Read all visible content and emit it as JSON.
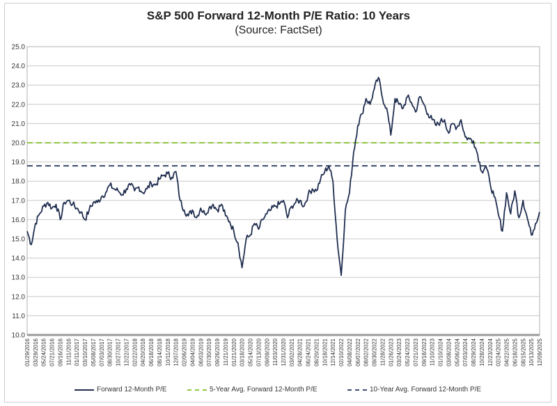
{
  "chart_data": {
    "type": "line",
    "title": "S&P 500 Forward 12-Month P/E Ratio: 10 Years",
    "subtitle": "(Source: FactSet)",
    "ylim": [
      10.0,
      25.0
    ],
    "yticks": [
      "10.0",
      "11.0",
      "12.0",
      "13.0",
      "14.0",
      "15.0",
      "16.0",
      "17.0",
      "18.0",
      "19.0",
      "20.0",
      "21.0",
      "22.0",
      "23.0",
      "24.0",
      "25.0"
    ],
    "xticks": [
      "01/29/2016",
      "03/29/2016",
      "05/24/2016",
      "07/21/2016",
      "09/16/2016",
      "11/11/2016",
      "01/11/2017",
      "03/10/2017",
      "05/08/2017",
      "07/03/2017",
      "08/30/2017",
      "10/27/2017",
      "12/22/2017",
      "02/22/2018",
      "04/20/2018",
      "06/18/2018",
      "08/14/2018",
      "10/11/2018",
      "12/07/2018",
      "02/06/2019",
      "04/04/2019",
      "06/03/2019",
      "07/30/2019",
      "09/26/2019",
      "11/21/2019",
      "01/21/2020",
      "03/18/2020",
      "05/14/2020",
      "07/13/2020",
      "09/09/2020",
      "11/03/2020",
      "12/31/2020",
      "03/02/2021",
      "04/28/2021",
      "06/24/2021",
      "08/20/2021",
      "10/18/2021",
      "12/14/2021",
      "02/10/2022",
      "04/08/2022",
      "06/07/2022",
      "08/02/2022",
      "09/30/2022",
      "11/28/2022",
      "01/26/2023",
      "03/24/2023",
      "05/24/2023",
      "07/21/2023",
      "09/18/2023",
      "11/10/2023",
      "01/10/2024",
      "03/08/2024",
      "05/06/2024",
      "07/03/2024",
      "08/29/2024",
      "10/28/2024",
      "12/23/2024",
      "02/24/2025",
      "04/22/2025",
      "06/18/2025",
      "08/15/2025",
      "10/13/2025",
      "12/09/2025"
    ],
    "grid": true,
    "legend_position": "bottom",
    "series": [
      {
        "name": "Forward 12-Month P/E",
        "color": "#1f2d4f",
        "x": [
          0.0,
          0.5,
          1.0,
          1.5,
          2.0,
          2.5,
          3.0,
          3.5,
          4.0,
          4.5,
          5.0,
          5.5,
          6.0,
          6.5,
          7.0,
          7.5,
          8.0,
          8.5,
          9.0,
          9.5,
          10.0,
          10.5,
          11.0,
          11.5,
          12.0,
          12.5,
          13.0,
          13.5,
          14.0,
          14.5,
          15.0,
          15.5,
          16.0,
          16.5,
          17.0,
          17.5,
          18.0,
          18.5,
          19.0,
          19.5,
          20.0,
          20.5,
          21.0,
          21.5,
          22.0,
          22.5,
          23.0,
          23.5,
          24.0,
          24.5,
          25.0,
          25.5,
          26.0,
          26.5,
          27.0,
          27.5,
          28.0,
          28.5,
          29.0,
          29.5,
          30.0,
          30.5,
          31.0,
          31.5,
          32.0,
          32.5,
          33.0,
          33.5,
          34.0,
          34.5,
          35.0,
          35.5,
          36.0,
          36.5,
          37.0,
          37.5,
          38.0,
          38.5,
          39.0,
          39.5,
          40.0,
          40.5,
          41.0,
          41.5,
          42.0,
          42.5,
          43.0,
          43.5,
          44.0,
          44.5,
          45.0,
          45.5,
          46.0,
          46.5,
          47.0,
          47.5,
          48.0,
          48.5,
          49.0,
          49.5,
          50.0,
          50.5,
          51.0,
          51.5,
          52.0,
          52.5,
          53.0,
          53.5,
          54.0,
          54.5,
          55.0,
          55.5,
          56.0,
          56.5,
          57.0,
          57.5,
          58.0,
          58.5,
          59.0,
          59.5,
          60.0,
          60.5,
          61.0,
          61.5,
          62.0
        ],
        "values": [
          15.4,
          14.7,
          15.8,
          16.3,
          16.7,
          16.9,
          16.6,
          16.8,
          16.0,
          16.9,
          17.0,
          16.8,
          16.6,
          16.4,
          16.0,
          16.5,
          16.9,
          16.9,
          17.2,
          17.4,
          17.8,
          17.6,
          17.5,
          17.3,
          17.6,
          17.8,
          17.5,
          17.7,
          17.4,
          17.6,
          17.9,
          17.8,
          18.1,
          18.3,
          18.4,
          18.2,
          18.5,
          17.0,
          16.5,
          16.2,
          16.5,
          16.1,
          16.6,
          16.3,
          16.6,
          16.8,
          16.5,
          16.8,
          16.2,
          15.9,
          15.4,
          14.8,
          13.5,
          15.0,
          15.2,
          15.8,
          15.5,
          16.0,
          16.3,
          16.5,
          16.7,
          16.8,
          17.0,
          16.1,
          16.7,
          16.9,
          17.0,
          16.7,
          17.3,
          17.6,
          17.5,
          18.1,
          18.5,
          18.8,
          18.0,
          15.0,
          13.1,
          16.5,
          17.4,
          19.5,
          20.9,
          21.5,
          22.3,
          22.0,
          22.8,
          23.4,
          22.3,
          21.8,
          20.4,
          22.3,
          22.0,
          21.8,
          22.4,
          22.1,
          21.6,
          22.4,
          22.0,
          21.5,
          21.2,
          20.9,
          21.1,
          21.2,
          20.5,
          21.0,
          20.8,
          21.2,
          20.3,
          20.2,
          20.1,
          19.4,
          18.5,
          18.8,
          17.9,
          17.2,
          16.3,
          15.4,
          17.4,
          16.3,
          17.5,
          16.1,
          17.0,
          16.1,
          15.2,
          15.8,
          16.4
        ]
      },
      {
        "name": "5-Year Avg. Forward 12-Month P/E",
        "color": "#8fc640",
        "value": 20.0
      },
      {
        "name": "10-Year Avg. Forward 12-Month P/E",
        "color": "#3a4a6b",
        "value": 18.8
      }
    ]
  }
}
